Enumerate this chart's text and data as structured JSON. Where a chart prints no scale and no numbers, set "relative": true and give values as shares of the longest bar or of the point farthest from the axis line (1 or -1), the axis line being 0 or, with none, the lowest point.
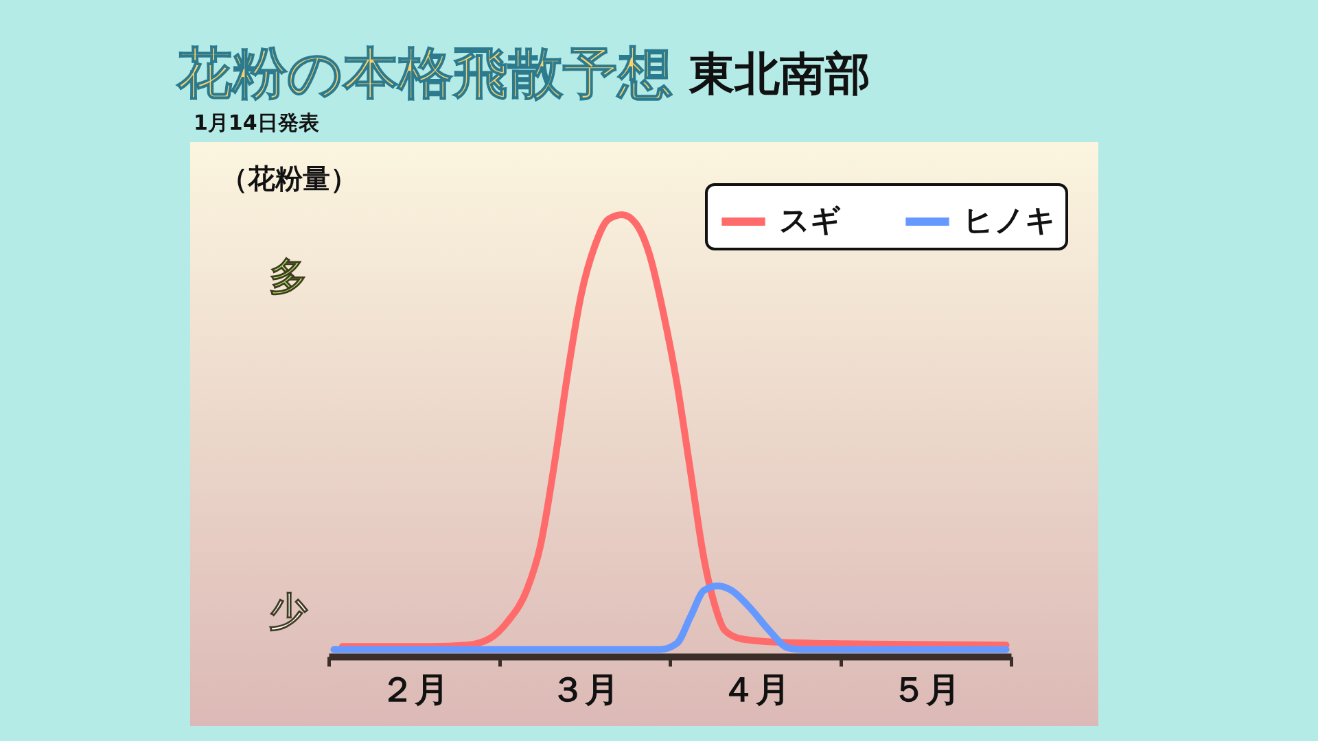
{
  "chart_data": {
    "type": "line",
    "title": "花粉の本格飛散予想",
    "subtitle": "東北南部",
    "ylabel": "（花粉量）",
    "annotations": [
      "1月14日発表",
      "多",
      "少"
    ],
    "relative": true,
    "xlim": [
      2,
      6
    ],
    "xticks": [
      {
        "value": 2,
        "label": null
      },
      {
        "value": 2.5,
        "label": "２月"
      },
      {
        "value": 3,
        "label": null
      },
      {
        "value": 3.5,
        "label": "３月"
      },
      {
        "value": 4,
        "label": null
      },
      {
        "value": 4.5,
        "label": "４月"
      },
      {
        "value": 5,
        "label": null
      },
      {
        "value": 5.5,
        "label": "５月"
      },
      {
        "value": 6,
        "label": null
      }
    ],
    "legend": "top right",
    "series": [
      {
        "name": "スギ",
        "color": "#ff6b6b",
        "x": [
          2.08,
          2.6,
          2.81,
          2.94,
          3.05,
          3.16,
          3.24,
          3.32,
          3.4,
          3.48,
          3.56,
          3.64,
          3.72,
          3.8,
          3.88,
          3.96,
          4.04,
          4.12,
          4.2,
          4.26,
          4.32,
          4.42,
          4.61,
          5.01,
          5.97
        ],
        "values": [
          0.023,
          0.023,
          0.026,
          0.04,
          0.08,
          0.15,
          0.25,
          0.43,
          0.64,
          0.82,
          0.93,
          0.99,
          1,
          0.98,
          0.91,
          0.78,
          0.62,
          0.42,
          0.22,
          0.12,
          0.06,
          0.04,
          0.033,
          0.029,
          0.026
        ]
      },
      {
        "name": "ヒノキ",
        "color": "#6699ff",
        "x": [
          2.03,
          3.94,
          4.04,
          4.12,
          4.2,
          4.28,
          4.36,
          4.47,
          4.58,
          4.69,
          4.77,
          5.97
        ],
        "values": [
          0.016,
          0.016,
          0.03,
          0.09,
          0.15,
          0.16,
          0.15,
          0.11,
          0.06,
          0.02,
          0.016,
          0.016
        ]
      }
    ]
  }
}
